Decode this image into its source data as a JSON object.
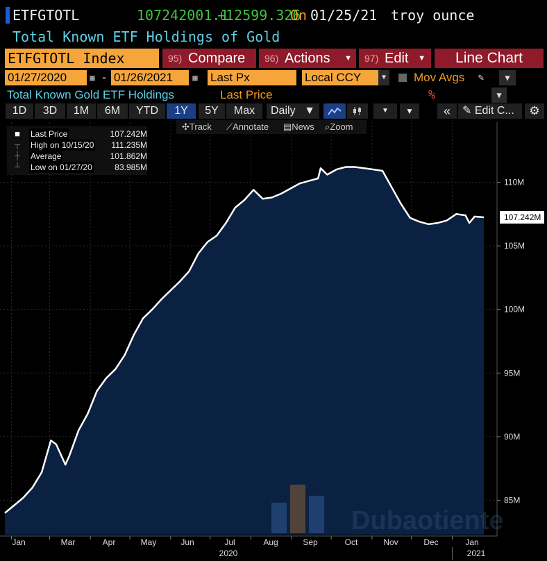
{
  "header": {
    "ticker": "ETFGTOTL",
    "last_value": "107242001.1",
    "change": "+12599.326",
    "on_label": "On",
    "date": "01/25/21",
    "unit": "troy ounce",
    "description": "Total Known ETF Holdings of Gold"
  },
  "command_bar": {
    "security": "ETFGTOTL Index",
    "compare_num": "95)",
    "compare": "Compare",
    "actions_num": "96)",
    "actions": "Actions",
    "edit_num": "97)",
    "edit": "Edit",
    "chart_type": "Line Chart"
  },
  "settings_bar": {
    "start_date": "01/27/2020",
    "separator": "-",
    "end_date": "01/26/2021",
    "field": "Last Px",
    "currency": "Local CCY",
    "mov_avgs": "Mov Avgs"
  },
  "subtitle_bar": {
    "title": "Total Known Gold ETF Holdings",
    "field": "Last Price",
    "pct": "%"
  },
  "toolbar": {
    "periods": [
      "1D",
      "3D",
      "1M",
      "6M",
      "YTD",
      "1Y",
      "5Y",
      "Max"
    ],
    "active_period": "1Y",
    "frequency": "Daily",
    "edit_chart": "Edit C..."
  },
  "tools": {
    "track": "Track",
    "annotate": "Annotate",
    "news": "News",
    "zoom": "Zoom"
  },
  "legend": {
    "last_label": "Last Price",
    "last_value": "107.242M",
    "high_label": "High on 10/15/20",
    "high_value": "111.235M",
    "avg_label": "Average",
    "avg_value": "101.862M",
    "low_label": "Low on 01/27/20",
    "low_value": "83.985M"
  },
  "watermark": "Dubaotiente",
  "colors": {
    "area_fill": "#0b2142",
    "line": "#ffffff",
    "up": "#3ec33e",
    "accent_orange": "#f39a1e"
  },
  "chart_data": {
    "type": "area",
    "x_ticks": [
      "Jan",
      "Mar",
      "Apr",
      "May",
      "Jun",
      "Jul",
      "Aug",
      "Sep",
      "Oct",
      "Nov",
      "Dec",
      "Jan"
    ],
    "x_year_labels": [
      "2020",
      "2021"
    ],
    "y_ticks": [
      85,
      90,
      95,
      100,
      105,
      110
    ],
    "y_tick_labels": [
      "85M",
      "90M",
      "95M",
      "100M",
      "105M",
      "110M"
    ],
    "ylim": [
      82.3,
      114.5
    ],
    "last_label": "107.242M",
    "series": [
      {
        "values": [
          [
            "2020-01-27",
            84.0
          ],
          [
            "2020-02-03",
            84.6
          ],
          [
            "2020-02-10",
            85.2
          ],
          [
            "2020-02-17",
            86.0
          ],
          [
            "2020-02-24",
            87.2
          ],
          [
            "2020-03-02",
            89.7
          ],
          [
            "2020-03-06",
            89.4
          ],
          [
            "2020-03-13",
            87.8
          ],
          [
            "2020-03-16",
            88.5
          ],
          [
            "2020-03-23",
            90.5
          ],
          [
            "2020-03-30",
            91.8
          ],
          [
            "2020-04-06",
            93.6
          ],
          [
            "2020-04-13",
            94.6
          ],
          [
            "2020-04-20",
            95.3
          ],
          [
            "2020-04-27",
            96.4
          ],
          [
            "2020-05-04",
            98.0
          ],
          [
            "2020-05-11",
            99.3
          ],
          [
            "2020-05-18",
            100.0
          ],
          [
            "2020-05-25",
            100.8
          ],
          [
            "2020-06-01",
            101.5
          ],
          [
            "2020-06-08",
            102.2
          ],
          [
            "2020-06-15",
            103.0
          ],
          [
            "2020-06-22",
            104.4
          ],
          [
            "2020-06-29",
            105.3
          ],
          [
            "2020-07-06",
            105.8
          ],
          [
            "2020-07-13",
            106.8
          ],
          [
            "2020-07-20",
            108.0
          ],
          [
            "2020-07-27",
            108.6
          ],
          [
            "2020-08-03",
            109.4
          ],
          [
            "2020-08-10",
            108.7
          ],
          [
            "2020-08-17",
            108.8
          ],
          [
            "2020-08-24",
            109.1
          ],
          [
            "2020-08-31",
            109.5
          ],
          [
            "2020-09-07",
            109.9
          ],
          [
            "2020-09-14",
            110.1
          ],
          [
            "2020-09-21",
            110.3
          ],
          [
            "2020-09-23",
            111.1
          ],
          [
            "2020-09-28",
            110.6
          ],
          [
            "2020-10-05",
            111.0
          ],
          [
            "2020-10-12",
            111.2
          ],
          [
            "2020-10-15",
            111.2
          ],
          [
            "2020-10-19",
            111.2
          ],
          [
            "2020-10-26",
            111.1
          ],
          [
            "2020-11-02",
            111.0
          ],
          [
            "2020-11-09",
            110.9
          ],
          [
            "2020-11-16",
            109.6
          ],
          [
            "2020-11-23",
            108.3
          ],
          [
            "2020-11-30",
            107.2
          ],
          [
            "2020-12-07",
            106.9
          ],
          [
            "2020-12-14",
            106.7
          ],
          [
            "2020-12-21",
            106.8
          ],
          [
            "2020-12-28",
            107.0
          ],
          [
            "2021-01-04",
            107.5
          ],
          [
            "2021-01-11",
            107.4
          ],
          [
            "2021-01-14",
            106.8
          ],
          [
            "2021-01-18",
            107.3
          ],
          [
            "2021-01-25",
            107.24
          ]
        ]
      }
    ]
  }
}
